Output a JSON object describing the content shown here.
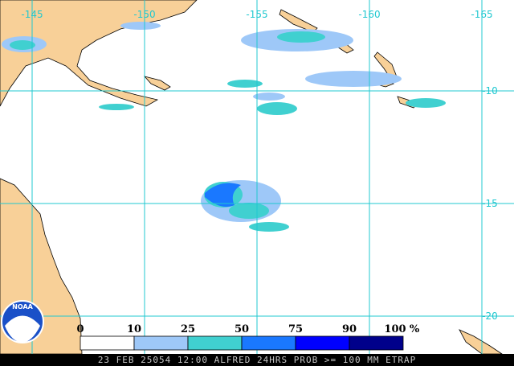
{
  "map": {
    "lon_labels": [
      -145,
      -150,
      -155,
      -160,
      -165
    ],
    "lat_labels": [
      -10,
      -15,
      -20
    ],
    "legend": {
      "ticks": [
        0,
        10,
        25,
        50,
        75,
        90,
        100
      ],
      "unit": "%",
      "colors": [
        "#ffffff",
        "#9ec8f8",
        "#40d0d0",
        "#1a78ff",
        "#0000ff",
        "#00008b"
      ]
    },
    "footer": "23 FEB 25054 12:00 ALFRED 24HRS PROB >= 100 MM ETRAP",
    "logo": "NOAA"
  }
}
